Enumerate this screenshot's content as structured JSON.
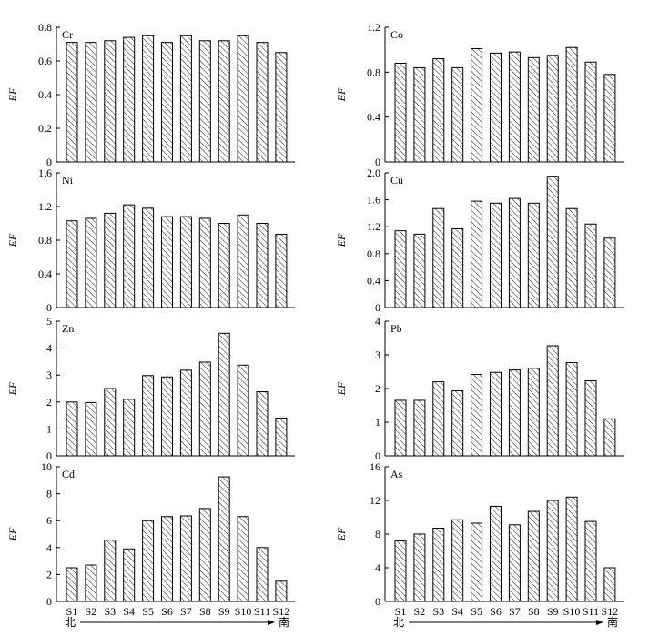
{
  "x_direction": {
    "start": "北",
    "end": "南"
  },
  "chart_data": [
    {
      "type": "bar",
      "title": "Cr",
      "ylabel": "EF",
      "ylim": [
        0,
        0.8
      ],
      "yticks": [
        "0",
        "0.2",
        "0.4",
        "0.6",
        "0.8"
      ],
      "categories": [
        "S1",
        "S2",
        "S3",
        "S4",
        "S5",
        "S6",
        "S7",
        "S8",
        "S9",
        "S10",
        "S11",
        "S12"
      ],
      "values": [
        0.71,
        0.71,
        0.72,
        0.74,
        0.75,
        0.71,
        0.75,
        0.72,
        0.72,
        0.75,
        0.71,
        0.65
      ]
    },
    {
      "type": "bar",
      "title": "Co",
      "ylabel": "EF",
      "ylim": [
        0,
        1.2
      ],
      "yticks": [
        "0",
        "0.4",
        "0.8",
        "1.2"
      ],
      "categories": [
        "S1",
        "S2",
        "S3",
        "S4",
        "S5",
        "S6",
        "S7",
        "S8",
        "S9",
        "S10",
        "S11",
        "S12"
      ],
      "values": [
        0.88,
        0.84,
        0.92,
        0.84,
        1.01,
        0.97,
        0.98,
        0.93,
        0.95,
        1.02,
        0.89,
        0.78
      ]
    },
    {
      "type": "bar",
      "title": "Ni",
      "ylabel": "EF",
      "ylim": [
        0,
        1.6
      ],
      "yticks": [
        "0",
        "0.4",
        "0.8",
        "1.2",
        "1.6"
      ],
      "categories": [
        "S1",
        "S2",
        "S3",
        "S4",
        "S5",
        "S6",
        "S7",
        "S8",
        "S9",
        "S10",
        "S11",
        "S12"
      ],
      "values": [
        1.03,
        1.06,
        1.12,
        1.22,
        1.18,
        1.08,
        1.08,
        1.06,
        1.0,
        1.1,
        1.0,
        0.87
      ]
    },
    {
      "type": "bar",
      "title": "Cu",
      "ylabel": "EF",
      "ylim": [
        0,
        2.0
      ],
      "yticks": [
        "0",
        "0.4",
        "0.8",
        "1.2",
        "1.6",
        "2.0"
      ],
      "categories": [
        "S1",
        "S2",
        "S3",
        "S4",
        "S5",
        "S6",
        "S7",
        "S8",
        "S9",
        "S10",
        "S11",
        "S12"
      ],
      "values": [
        1.14,
        1.09,
        1.47,
        1.17,
        1.58,
        1.55,
        1.62,
        1.55,
        1.95,
        1.47,
        1.24,
        1.03
      ]
    },
    {
      "type": "bar",
      "title": "Zn",
      "ylabel": "EF",
      "ylim": [
        0,
        5
      ],
      "yticks": [
        "0",
        "1",
        "2",
        "3",
        "4",
        "5"
      ],
      "categories": [
        "S1",
        "S2",
        "S3",
        "S4",
        "S5",
        "S6",
        "S7",
        "S8",
        "S9",
        "S10",
        "S11",
        "S12"
      ],
      "values": [
        2.0,
        1.98,
        2.5,
        2.1,
        2.98,
        2.93,
        3.18,
        3.48,
        4.55,
        3.37,
        2.38,
        1.4
      ]
    },
    {
      "type": "bar",
      "title": "Pb",
      "ylabel": "EF",
      "ylim": [
        0,
        4
      ],
      "yticks": [
        "0",
        "1",
        "2",
        "3",
        "4"
      ],
      "categories": [
        "S1",
        "S2",
        "S3",
        "S4",
        "S5",
        "S6",
        "S7",
        "S8",
        "S9",
        "S10",
        "S11",
        "S12"
      ],
      "values": [
        1.65,
        1.65,
        2.2,
        1.93,
        2.42,
        2.48,
        2.55,
        2.6,
        3.27,
        2.77,
        2.23,
        1.1
      ]
    },
    {
      "type": "bar",
      "title": "Cd",
      "ylabel": "EF",
      "ylim": [
        0,
        10
      ],
      "yticks": [
        "0",
        "2",
        "4",
        "6",
        "8",
        "10"
      ],
      "categories": [
        "S1",
        "S2",
        "S3",
        "S4",
        "S5",
        "S6",
        "S7",
        "S8",
        "S9",
        "S10",
        "S11",
        "S12"
      ],
      "values": [
        2.5,
        2.7,
        4.55,
        3.9,
        6.0,
        6.3,
        6.35,
        6.9,
        9.25,
        6.3,
        4.0,
        1.5
      ]
    },
    {
      "type": "bar",
      "title": "As",
      "ylabel": "EF",
      "ylim": [
        0,
        16
      ],
      "yticks": [
        "0",
        "4",
        "8",
        "12",
        "16"
      ],
      "categories": [
        "S1",
        "S2",
        "S3",
        "S4",
        "S5",
        "S6",
        "S7",
        "S8",
        "S9",
        "S10",
        "S11",
        "S12"
      ],
      "values": [
        7.2,
        8.0,
        8.7,
        9.7,
        9.3,
        11.3,
        9.1,
        10.7,
        12.0,
        12.4,
        9.5,
        4.0
      ]
    }
  ]
}
